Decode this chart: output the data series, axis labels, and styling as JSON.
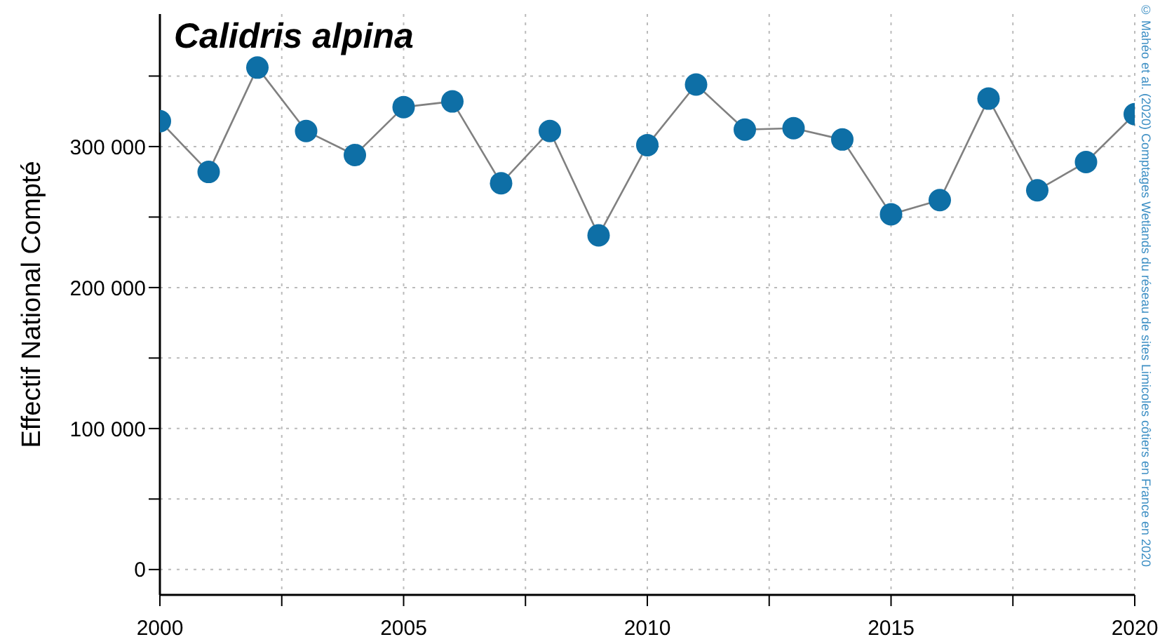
{
  "chart_data": {
    "type": "line",
    "title": "Calidris alpina",
    "ylabel": "Effectif National Compté",
    "annotations": [
      "© Mahéo et al. (2020) Comptages Wetlands du réseau de sites Limicoles côtiers en France en 2020"
    ],
    "x": [
      2000,
      2001,
      2002,
      2003,
      2004,
      2005,
      2006,
      2007,
      2008,
      2009,
      2010,
      2011,
      2012,
      2013,
      2014,
      2015,
      2016,
      2017,
      2018,
      2019,
      2020
    ],
    "series": [
      {
        "color": "#0e6fa6",
        "values": [
          318000,
          282000,
          356000,
          311000,
          294000,
          328000,
          332000,
          274000,
          311000,
          237000,
          301000,
          344000,
          312000,
          313000,
          305000,
          252000,
          262000,
          334000,
          269000,
          289000,
          323000
        ]
      }
    ],
    "xlim": [
      2000,
      2020
    ],
    "xticks": [
      2000,
      {
        "value": 2002.5,
        "label": null
      },
      2005,
      {
        "value": 2007.5,
        "label": null
      },
      2010,
      {
        "value": 2012.5,
        "label": null
      },
      2015,
      {
        "value": 2017.5,
        "label": null
      },
      2020
    ],
    "ylim": [
      -18000,
      394000
    ],
    "yticks": [
      {
        "value": 0,
        "label": "0"
      },
      {
        "value": 50000,
        "label": null
      },
      {
        "value": 100000,
        "label": "100 000"
      },
      {
        "value": 150000,
        "label": null
      },
      {
        "value": 200000,
        "label": "200 000"
      },
      {
        "value": 250000,
        "label": null
      },
      {
        "value": 300000,
        "label": "300 000"
      },
      {
        "value": 350000,
        "label": null
      }
    ],
    "grid": true,
    "marker": "circle",
    "line_style": "solid",
    "legend": false
  }
}
